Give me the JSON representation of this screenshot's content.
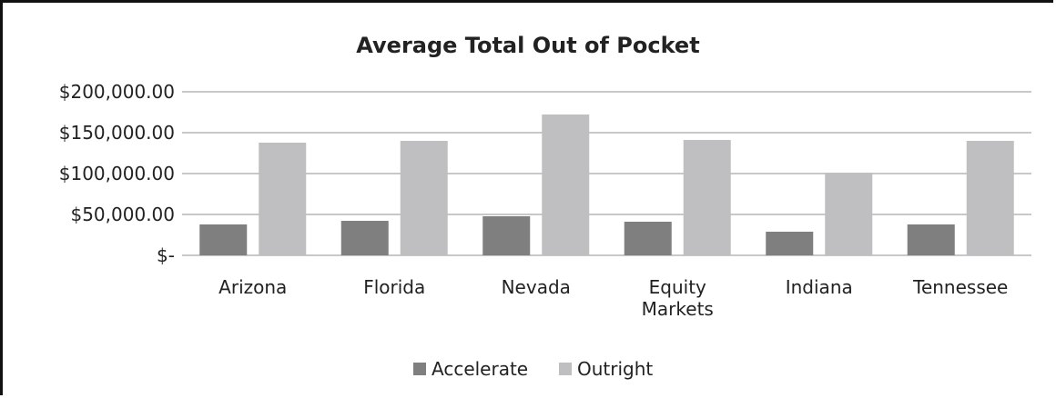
{
  "chart_data": {
    "type": "bar",
    "title": "Average Total Out of Pocket",
    "categories": [
      "Arizona",
      "Florida",
      "Nevada",
      "Equity Markets",
      "Indiana",
      "Tennessee"
    ],
    "series": [
      {
        "name": "Accelerate",
        "color": "#7f7f7f",
        "values": [
          37800,
          42200,
          47800,
          41100,
          28900,
          37800
        ]
      },
      {
        "name": "Outright",
        "color": "#bfbfc1",
        "values": [
          137800,
          140000,
          172200,
          141100,
          101100,
          140000
        ]
      }
    ],
    "ylim": [
      0,
      200000
    ],
    "yticks": [
      {
        "value": 0,
        "label": "$-"
      },
      {
        "value": 50000,
        "label": "$50,000.00"
      },
      {
        "value": 100000,
        "label": "$100,000.00"
      },
      {
        "value": 150000,
        "label": "$150,000.00"
      },
      {
        "value": 200000,
        "label": "$200,000.00"
      }
    ],
    "grid": true,
    "legend": "bottom"
  }
}
